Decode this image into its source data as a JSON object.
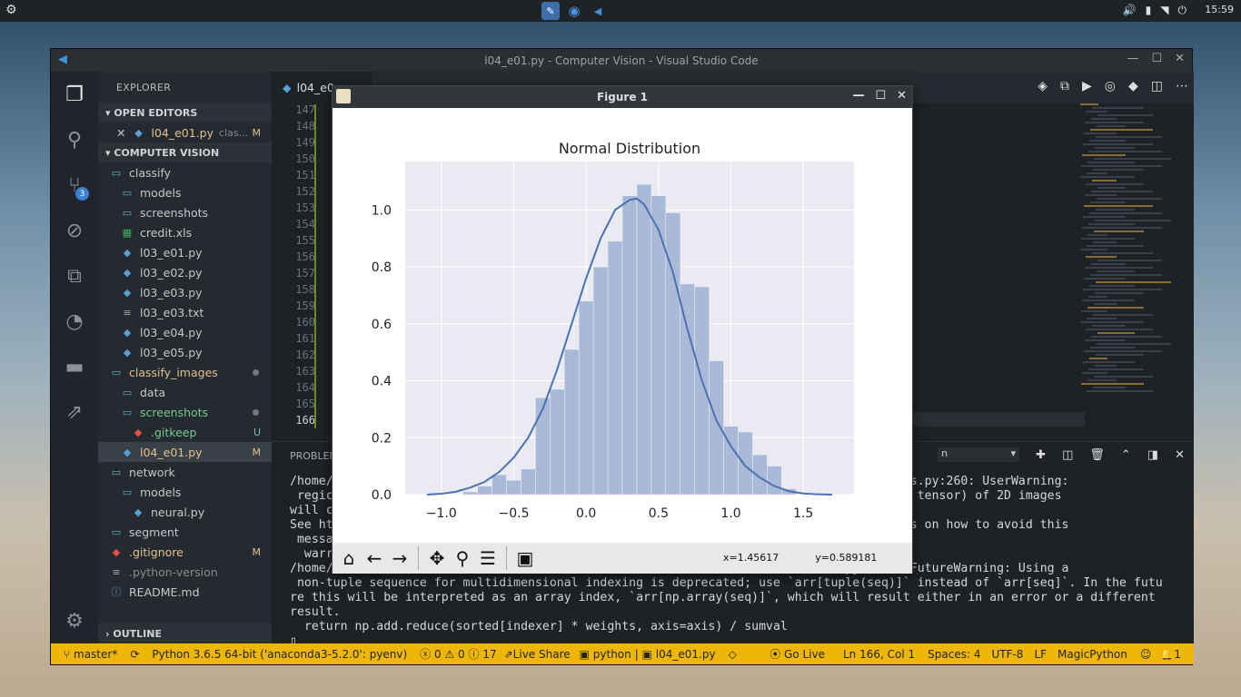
{
  "system": {
    "clock": "15:59"
  },
  "window": {
    "title": "l04_e01.py - Computer Vision - Visual Studio Code"
  },
  "sidebar": {
    "title": "EXPLORER",
    "open_editors_label": "OPEN EDITORS",
    "open_editor": {
      "name": "l04_e01.py",
      "desc": "clas...",
      "status": "M"
    },
    "project_label": "COMPUTER VISION",
    "outline_label": "OUTLINE",
    "source_control_badge": "3",
    "items": [
      {
        "label": "classify",
        "type": "folder",
        "indent": 1,
        "status": ""
      },
      {
        "label": "models",
        "type": "folder",
        "indent": 2,
        "status": ""
      },
      {
        "label": "screenshots",
        "type": "folder",
        "indent": 2,
        "status": ""
      },
      {
        "label": "credit.xls",
        "type": "xls",
        "indent": 2,
        "status": ""
      },
      {
        "label": "l03_e01.py",
        "type": "py",
        "indent": 2,
        "status": ""
      },
      {
        "label": "l03_e02.py",
        "type": "py",
        "indent": 2,
        "status": ""
      },
      {
        "label": "l03_e03.py",
        "type": "py",
        "indent": 2,
        "status": ""
      },
      {
        "label": "l03_e03.txt",
        "type": "txt",
        "indent": 2,
        "status": ""
      },
      {
        "label": "l03_e04.py",
        "type": "py",
        "indent": 2,
        "status": ""
      },
      {
        "label": "l03_e05.py",
        "type": "py",
        "indent": 2,
        "status": ""
      },
      {
        "label": "classify_images",
        "type": "folder",
        "indent": 1,
        "status": "dot",
        "color": "mod"
      },
      {
        "label": "data",
        "type": "folder",
        "indent": 2,
        "status": ""
      },
      {
        "label": "screenshots",
        "type": "folder",
        "indent": 2,
        "status": "dot",
        "color": "unt"
      },
      {
        "label": ".gitkeep",
        "type": "git",
        "indent": 3,
        "status": "U",
        "color": "unt"
      },
      {
        "label": "l04_e01.py",
        "type": "py",
        "indent": 2,
        "status": "M",
        "color": "mod",
        "selected": true
      },
      {
        "label": "network",
        "type": "folder",
        "indent": 1,
        "status": ""
      },
      {
        "label": "models",
        "type": "folder",
        "indent": 2,
        "status": ""
      },
      {
        "label": "neural.py",
        "type": "py",
        "indent": 3,
        "status": ""
      },
      {
        "label": "segment",
        "type": "folder",
        "indent": 1,
        "status": ""
      },
      {
        "label": ".gitignore",
        "type": "git",
        "indent": 1,
        "status": "M",
        "color": "mod"
      },
      {
        "label": ".python-version",
        "type": "txt",
        "indent": 1,
        "status": "",
        "color": "dim"
      },
      {
        "label": "README.md",
        "type": "info",
        "indent": 1,
        "status": ""
      }
    ]
  },
  "editor": {
    "tab_label": "l04_e0",
    "line_numbers": [
      "147",
      "148",
      "149",
      "150",
      "151",
      "152",
      "153",
      "154",
      "155",
      "156",
      "157",
      "158",
      "159",
      "160",
      "161",
      "162",
      "163",
      "164",
      "165",
      "166"
    ]
  },
  "panel": {
    "tab_label": "PROBLEM",
    "terminal_select": "n",
    "lines": [
      "/home/                                                                   e/_regionprops.py:260: UserWarning:",
      " regic                                                                   , and inertia tensor) of 2D images",
      "will c",
      "See ht                                                                   ns for details on how to avoid this",
      " messa",
      "  warr",
      "/home/                                                                   ats.py:1713: FutureWarning: Using a",
      " non-tuple sequence for multidimensional indexing is deprecated; use `arr[tuple(seq)]` instead of `arr[seq]`. In the futu",
      "re this will be interpreted as an array index, `arr[np.array(seq)]`, which will result either in an error or a different",
      "result.",
      "  return np.add.reduce(sorted[indexer] * weights, axis=axis) / sumval",
      "▯"
    ]
  },
  "statusbar": {
    "branch": "master*",
    "python": "Python 3.6.5 64-bit ('anaconda3-5.2.0': pyenv)",
    "errors": "0",
    "warnings": "0",
    "infos": "17",
    "live_share": "Live Share",
    "lang": "python",
    "file": "l04_e01.py",
    "go_live": "Go Live",
    "position": "Ln 166, Col 1",
    "spaces": "Spaces: 4",
    "encoding": "UTF-8",
    "eol": "LF",
    "magic": "MagicPython",
    "notifications": "1"
  },
  "figure": {
    "window_title": "Figure 1",
    "coord_x": "x=1.45617",
    "coord_y": "y=0.589181"
  },
  "chart_data": {
    "type": "bar",
    "title": "Normal Distribution",
    "xlabel": "",
    "ylabel": "",
    "xlim": [
      -1.25,
      1.85
    ],
    "ylim": [
      0,
      1.17
    ],
    "x_ticks": [
      "−1.0",
      "−0.5",
      "0.0",
      "0.5",
      "1.0",
      "1.5"
    ],
    "x_tick_values": [
      -1.0,
      -0.5,
      0.0,
      0.5,
      1.0,
      1.5
    ],
    "y_ticks": [
      "0.0",
      "0.2",
      "0.4",
      "0.6",
      "0.8",
      "1.0"
    ],
    "y_tick_values": [
      0,
      0.2,
      0.4,
      0.6,
      0.8,
      1.0
    ],
    "bin_edges": [
      -1.25,
      -1.15,
      -1.05,
      -0.95,
      -0.85,
      -0.75,
      -0.65,
      -0.55,
      -0.45,
      -0.35,
      -0.25,
      -0.15,
      -0.05,
      0.05,
      0.15,
      0.25,
      0.35,
      0.45,
      0.55,
      0.65,
      0.75,
      0.85,
      0.95,
      1.05,
      1.15,
      1.25,
      1.35,
      1.45,
      1.55,
      1.65,
      1.75,
      1.85
    ],
    "counts": [
      0,
      0,
      0,
      0,
      0.01,
      0.03,
      0.07,
      0.05,
      0.09,
      0.34,
      0.37,
      0.51,
      0.68,
      0.8,
      0.89,
      1.05,
      1.09,
      1.05,
      0.99,
      0.74,
      0.73,
      0.47,
      0.24,
      0.22,
      0.14,
      0.1,
      0.02,
      0,
      0,
      0,
      0
    ],
    "kde_x": [
      -1.1,
      -1.0,
      -0.9,
      -0.8,
      -0.7,
      -0.6,
      -0.5,
      -0.4,
      -0.3,
      -0.2,
      -0.1,
      0.0,
      0.1,
      0.2,
      0.3,
      0.35,
      0.4,
      0.5,
      0.6,
      0.7,
      0.8,
      0.9,
      1.0,
      1.1,
      1.2,
      1.3,
      1.4,
      1.5,
      1.6,
      1.7
    ],
    "kde_y": [
      0.0,
      0.003,
      0.01,
      0.025,
      0.045,
      0.08,
      0.13,
      0.2,
      0.3,
      0.44,
      0.6,
      0.76,
      0.9,
      1.0,
      1.035,
      1.04,
      1.02,
      0.93,
      0.78,
      0.58,
      0.4,
      0.26,
      0.17,
      0.1,
      0.06,
      0.03,
      0.012,
      0.004,
      0.001,
      0.0
    ],
    "bar_color": "#a9b9d8",
    "line_color": "#4c72b0",
    "background": "#eaeaf2",
    "grid": true
  }
}
